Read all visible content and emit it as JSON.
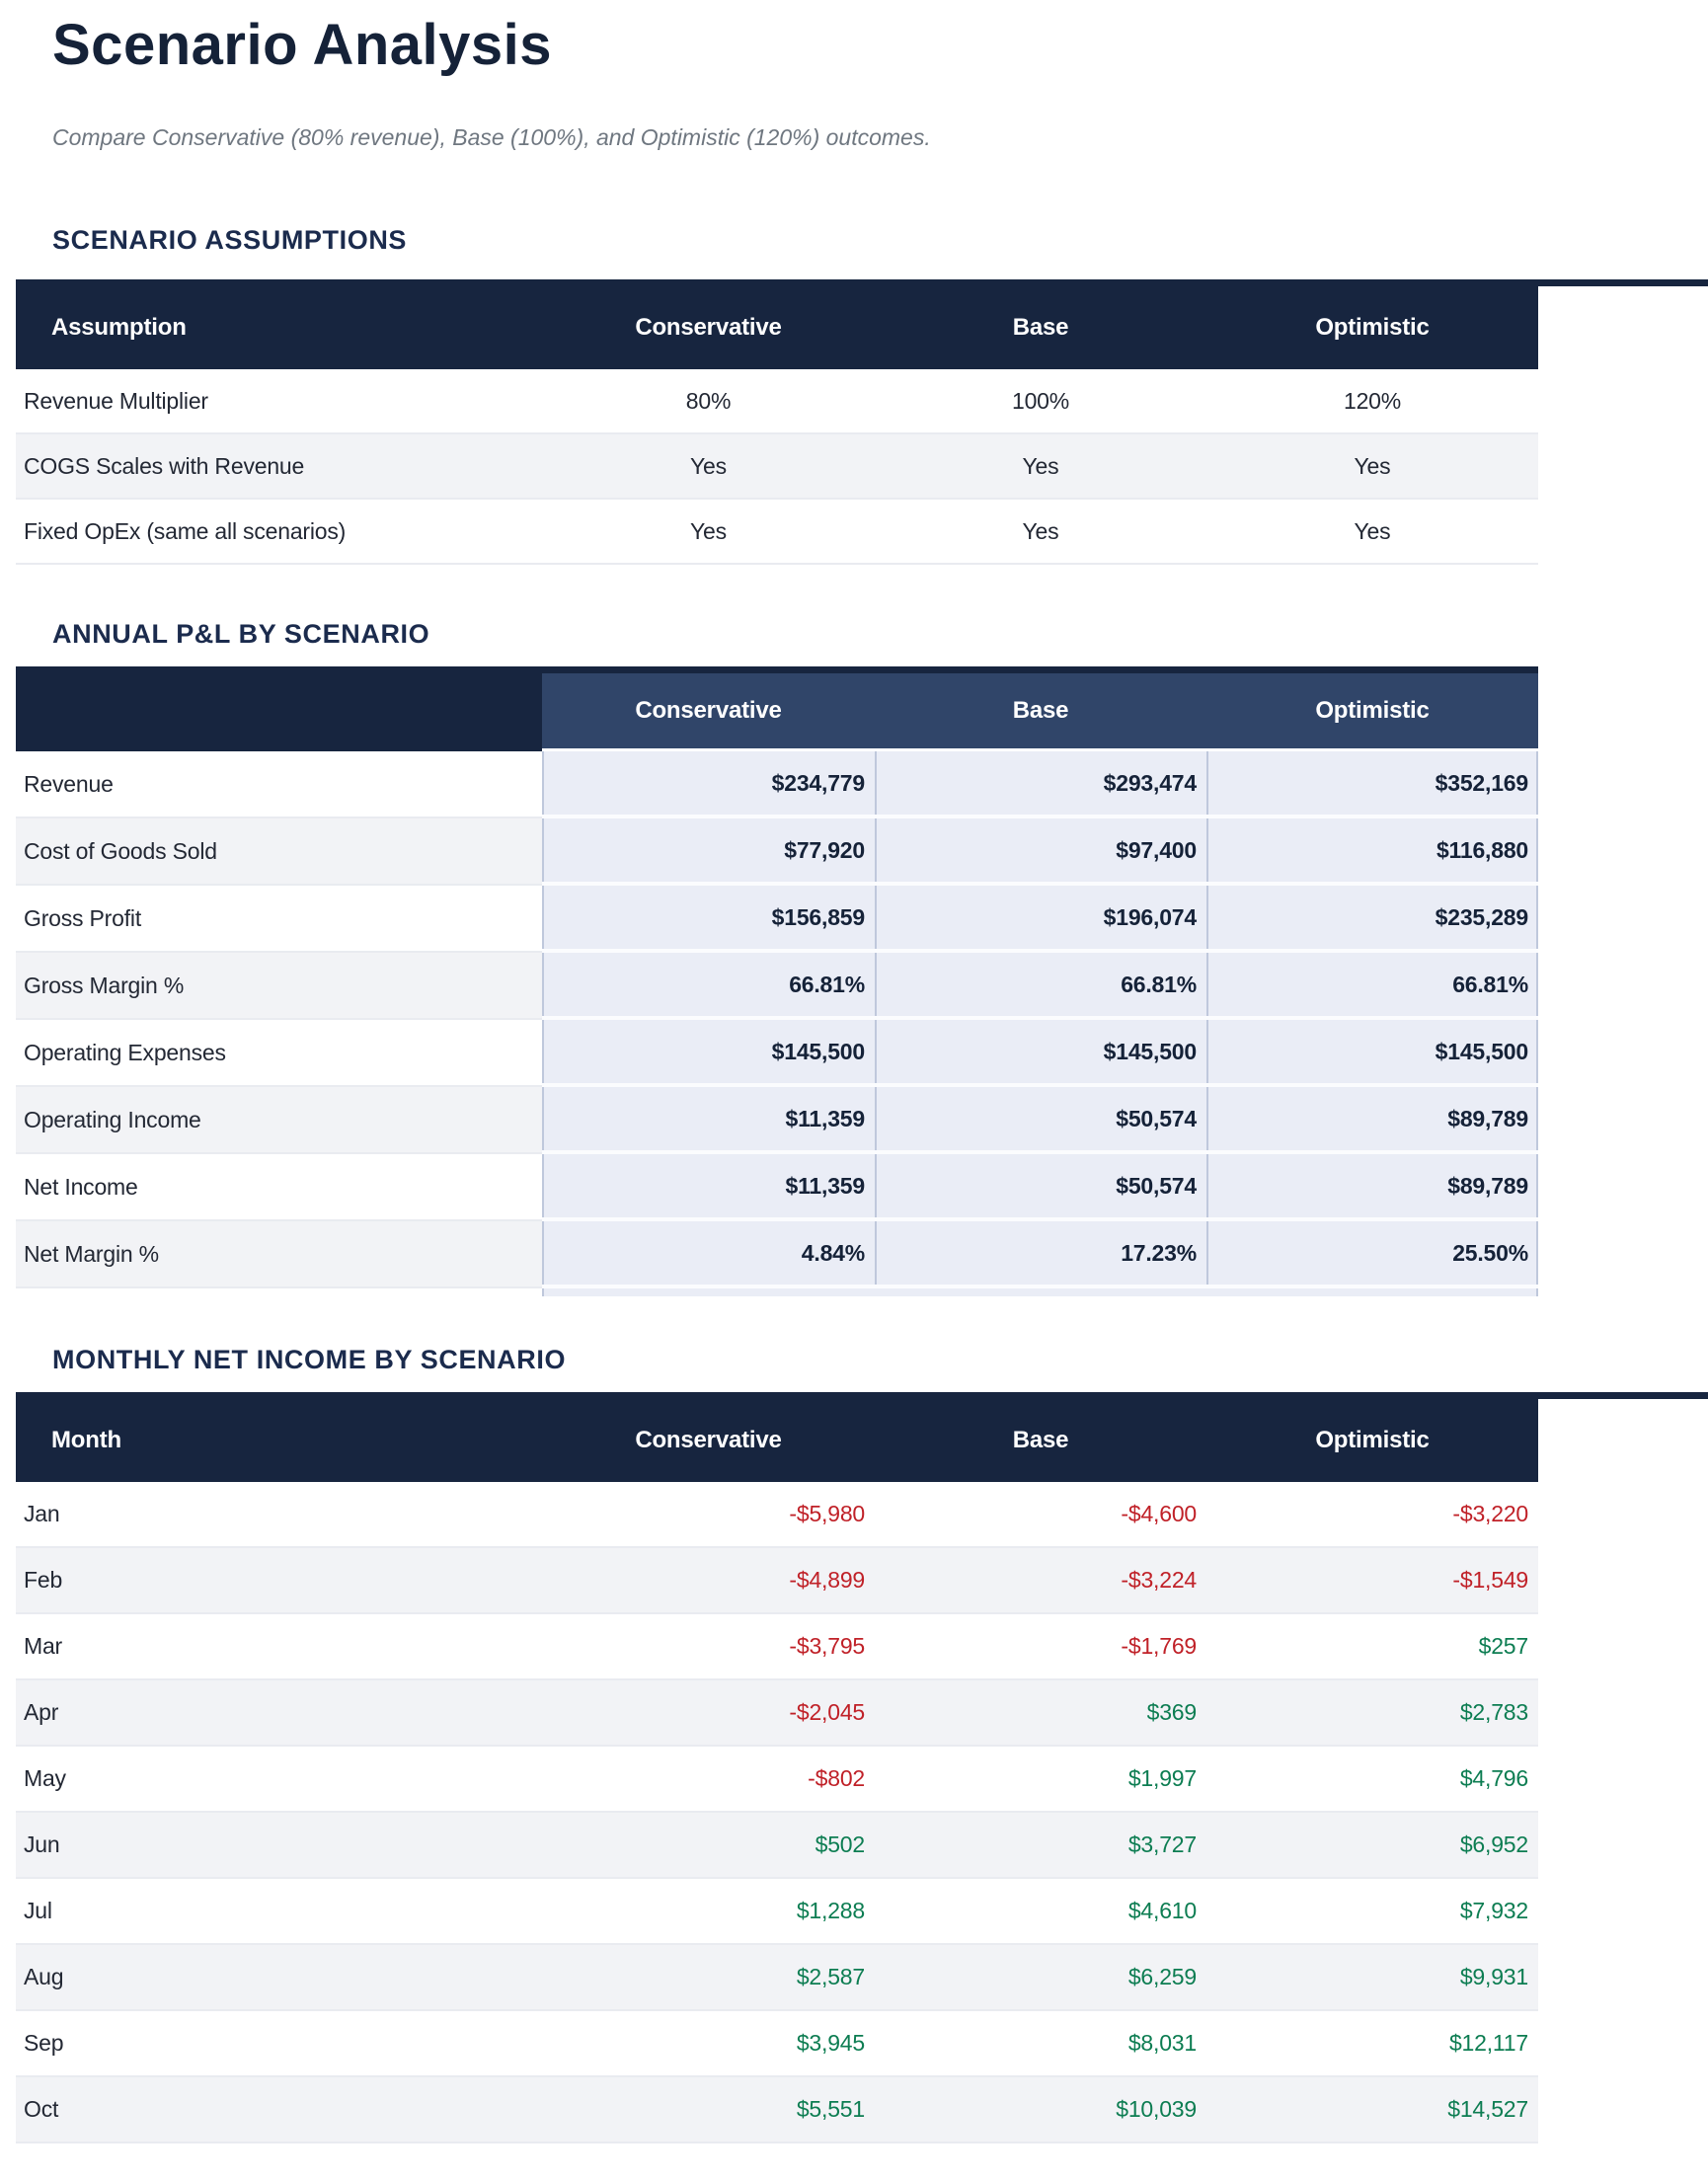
{
  "page": {
    "title": "Scenario Analysis",
    "subtitle": "Compare Conservative (80% revenue), Base (100%), and Optimistic (120%) outcomes."
  },
  "colors": {
    "title_navy": "#152238",
    "heading_navy": "#1b2b4d",
    "header_navy": "#17253f",
    "header_blue": "#304569",
    "cell_blue": "#eaedf6",
    "cell_border": "#bfc8dc",
    "stripe_gray": "#f2f3f6",
    "row_border": "#e9ebf0",
    "subtitle_gray": "#6f7780",
    "text_dark": "#232834",
    "negative_red": "#c02128",
    "positive_green": "#0d7d52"
  },
  "assumptions": {
    "heading": "SCENARIO ASSUMPTIONS",
    "columns": [
      "Assumption",
      "Conservative",
      "Base",
      "Optimistic"
    ],
    "rows": [
      {
        "label": "Revenue Multiplier",
        "values": [
          "80%",
          "100%",
          "120%"
        ]
      },
      {
        "label": "COGS Scales with Revenue",
        "values": [
          "Yes",
          "Yes",
          "Yes"
        ]
      },
      {
        "label": "Fixed OpEx (same all scenarios)",
        "values": [
          "Yes",
          "Yes",
          "Yes"
        ]
      }
    ]
  },
  "annual_pnl": {
    "heading": "ANNUAL P&L BY SCENARIO",
    "columns": [
      "",
      "Conservative",
      "Base",
      "Optimistic"
    ],
    "rows": [
      {
        "label": "Revenue",
        "values": [
          "$234,779",
          "$293,474",
          "$352,169"
        ]
      },
      {
        "label": "Cost of Goods Sold",
        "values": [
          "$77,920",
          "$97,400",
          "$116,880"
        ]
      },
      {
        "label": "Gross Profit",
        "values": [
          "$156,859",
          "$196,074",
          "$235,289"
        ]
      },
      {
        "label": "Gross Margin %",
        "values": [
          "66.81%",
          "66.81%",
          "66.81%"
        ]
      },
      {
        "label": "Operating Expenses",
        "values": [
          "$145,500",
          "$145,500",
          "$145,500"
        ]
      },
      {
        "label": "Operating Income",
        "values": [
          "$11,359",
          "$50,574",
          "$89,789"
        ]
      },
      {
        "label": "Net Income",
        "values": [
          "$11,359",
          "$50,574",
          "$89,789"
        ]
      },
      {
        "label": "Net Margin %",
        "values": [
          "4.84%",
          "17.23%",
          "25.50%"
        ]
      }
    ]
  },
  "monthly": {
    "heading": "MONTHLY NET INCOME BY SCENARIO",
    "columns": [
      "Month",
      "Conservative",
      "Base",
      "Optimistic"
    ],
    "rows": [
      {
        "label": "Jan",
        "values": [
          "-$5,980",
          "-$4,600",
          "-$3,220"
        ]
      },
      {
        "label": "Feb",
        "values": [
          "-$4,899",
          "-$3,224",
          "-$1,549"
        ]
      },
      {
        "label": "Mar",
        "values": [
          "-$3,795",
          "-$1,769",
          "$257"
        ]
      },
      {
        "label": "Apr",
        "values": [
          "-$2,045",
          "$369",
          "$2,783"
        ]
      },
      {
        "label": "May",
        "values": [
          "-$802",
          "$1,997",
          "$4,796"
        ]
      },
      {
        "label": "Jun",
        "values": [
          "$502",
          "$3,727",
          "$6,952"
        ]
      },
      {
        "label": "Jul",
        "values": [
          "$1,288",
          "$4,610",
          "$7,932"
        ]
      },
      {
        "label": "Aug",
        "values": [
          "$2,587",
          "$6,259",
          "$9,931"
        ]
      },
      {
        "label": "Sep",
        "values": [
          "$3,945",
          "$8,031",
          "$12,117"
        ]
      },
      {
        "label": "Oct",
        "values": [
          "$5,551",
          "$10,039",
          "$14,527"
        ]
      }
    ]
  }
}
